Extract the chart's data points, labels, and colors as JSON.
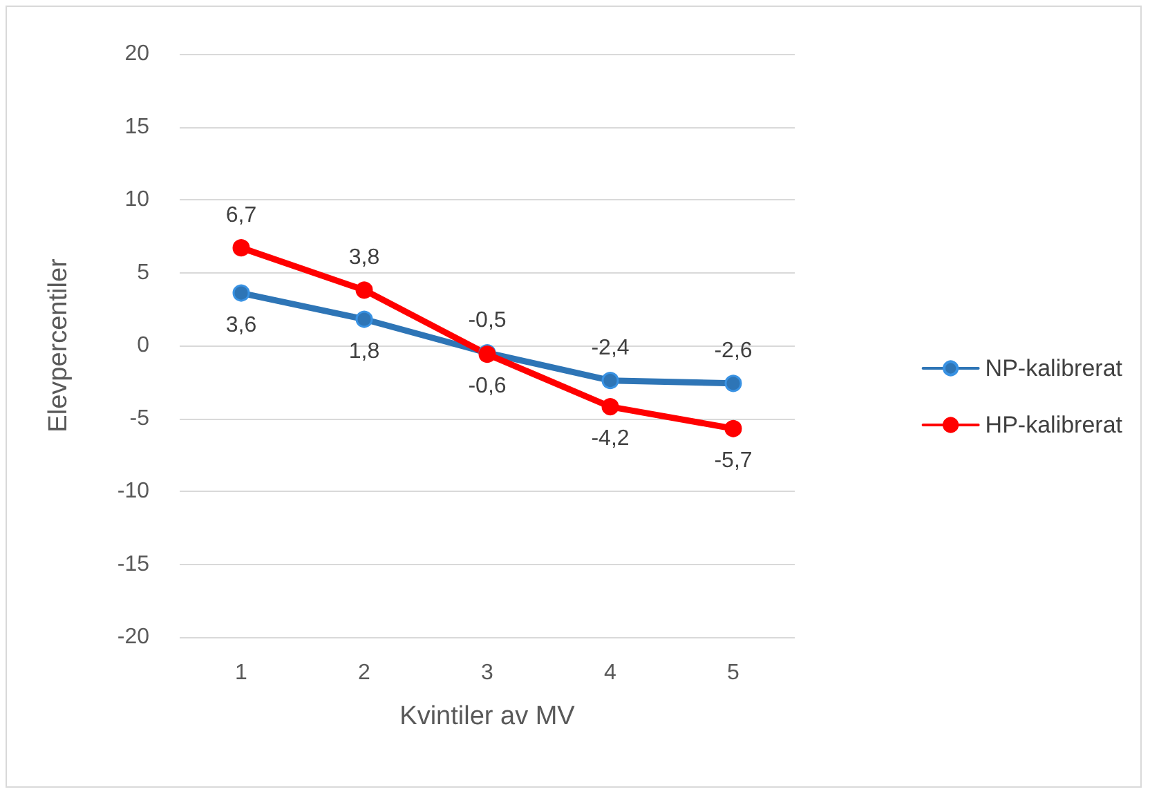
{
  "chart_data": {
    "type": "line",
    "xlabel": "Kvintiler av MV",
    "ylabel": "Elevpercentiler",
    "categories": [
      "1",
      "2",
      "3",
      "4",
      "5"
    ],
    "series": [
      {
        "name": "NP-kalibrerat",
        "color": "#2e75b6",
        "values": [
          3.6,
          1.8,
          -0.5,
          -2.4,
          -2.6
        ],
        "value_labels": [
          "3,6",
          "1,8",
          "-0,5",
          "-2,4",
          "-2,6"
        ]
      },
      {
        "name": "HP-kalibrerat",
        "color": "#ff0000",
        "values": [
          6.7,
          3.8,
          -0.6,
          -4.2,
          -5.7
        ],
        "value_labels": [
          "6,7",
          "3,8",
          "-0,6",
          "-4,2",
          "-5,7"
        ]
      }
    ],
    "ylim": [
      -20,
      20
    ],
    "yticks": [
      -20,
      -15,
      -10,
      -5,
      0,
      5,
      10,
      15,
      20
    ],
    "grid": "y",
    "legend": "right",
    "marker": "circle",
    "line_style": "solid"
  }
}
